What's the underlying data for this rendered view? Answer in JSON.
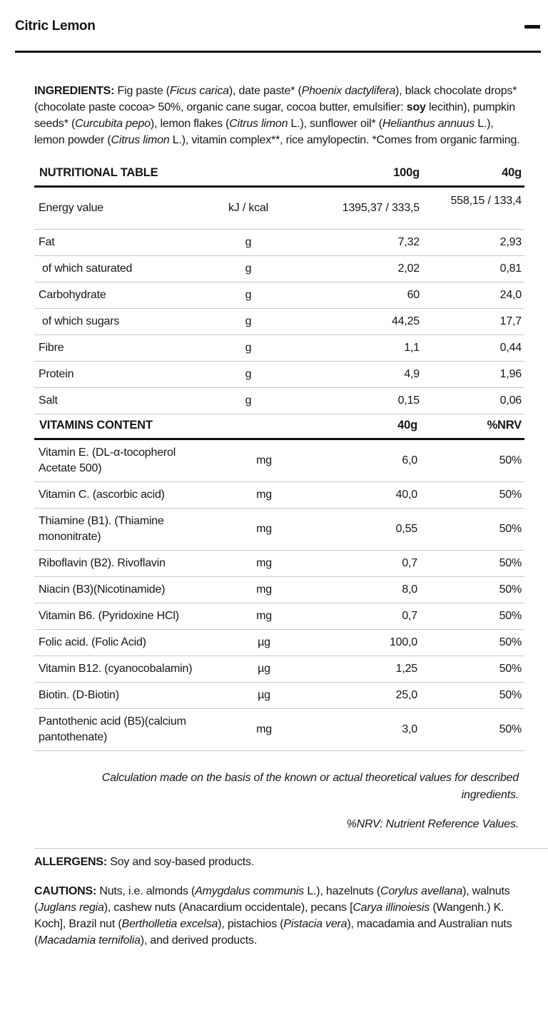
{
  "header": {
    "title": "Citric Lemon"
  },
  "ingredients": {
    "segments": [
      {
        "t": "INGREDIENTS: ",
        "b": true
      },
      {
        "t": "Fig paste ("
      },
      {
        "t": "Ficus carica",
        "i": true
      },
      {
        "t": "), date paste* ("
      },
      {
        "t": "Phoenix dactylifera",
        "i": true
      },
      {
        "t": "), black chocolate drops* (chocolate paste cocoa> 50%, organic cane sugar, cocoa butter, emulsifier: "
      },
      {
        "t": "soy",
        "b": true
      },
      {
        "t": " lecithin), pumpkin seeds* ("
      },
      {
        "t": "Curcubita pepo",
        "i": true
      },
      {
        "t": "), lemon flakes ("
      },
      {
        "t": "Citrus limon",
        "i": true
      },
      {
        "t": " L.), sunflower oil* ("
      },
      {
        "t": "Helianthus annuus",
        "i": true
      },
      {
        "t": " L.), lemon powder ("
      },
      {
        "t": "Citrus limon",
        "i": true
      },
      {
        "t": " L.), vitamin complex**, rice amylopectin. *Comes from organic farming."
      }
    ]
  },
  "nutrition_table": {
    "title": "NUTRITIONAL TABLE",
    "col_100g": "100g",
    "col_40g": "40g",
    "rows": [
      {
        "label": "Energy value",
        "unit": "kJ / kcal",
        "v100": "1395,37 / 333,5",
        "v40": "558,15 / 133,4"
      },
      {
        "label": "Fat",
        "unit": "g",
        "v100": "7,32",
        "v40": "2,93"
      },
      {
        "label": "of which saturated",
        "unit": "g",
        "v100": "2,02",
        "v40": "0,81"
      },
      {
        "label": "Carbohydrate",
        "unit": "g",
        "v100": "60",
        "v40": "24,0"
      },
      {
        "label": "of which sugars",
        "unit": "g",
        "v100": "44,25",
        "v40": "17,7"
      },
      {
        "label": "Fibre",
        "unit": "g",
        "v100": "1,1",
        "v40": "0,44"
      },
      {
        "label": "Protein",
        "unit": "g",
        "v100": "4,9",
        "v40": "1,96"
      },
      {
        "label": "Salt",
        "unit": "g",
        "v100": "0,15",
        "v40": "0,06"
      }
    ]
  },
  "vitamins_table": {
    "title": "VITAMINS CONTENT",
    "col_40g": "40g",
    "col_nrv": "%NRV",
    "rows": [
      {
        "label": "Vitamin E. (DL-α-tocopherol Acetate 500)",
        "unit": "mg",
        "v40": "6,0",
        "nrv": "50%"
      },
      {
        "label": "Vitamin C. (ascorbic acid)",
        "unit": "mg",
        "v40": "40,0",
        "nrv": "50%"
      },
      {
        "label": "Thiamine (B1). (Thiamine mononitrate)",
        "unit": "mg",
        "v40": "0,55",
        "nrv": "50%"
      },
      {
        "label": "Riboflavin (B2). Rivoflavin",
        "unit": "mg",
        "v40": "0,7",
        "nrv": "50%"
      },
      {
        "label": "Niacin (B3)(Nicotinamide)",
        "unit": "mg",
        "v40": "8,0",
        "nrv": "50%"
      },
      {
        "label": "Vitamin B6. (Pyridoxine HCl)",
        "unit": "mg",
        "v40": "0,7",
        "nrv": "50%"
      },
      {
        "label": "Folic acid. (Folic Acid)",
        "unit": "µg",
        "v40": "100,0",
        "nrv": "50%"
      },
      {
        "label": "Vitamin B12. (cyanocobalamin)",
        "unit": "µg",
        "v40": "1,25",
        "nrv": "50%"
      },
      {
        "label": "Biotin. (D-Biotin)",
        "unit": "µg",
        "v40": "25,0",
        "nrv": "50%"
      },
      {
        "label": "Pantothenic acid (B5)(calcium pantothenate)",
        "unit": "mg",
        "v40": "3,0",
        "nrv": "50%"
      }
    ]
  },
  "notes": {
    "calculation": "Calculation made on the basis of the known or actual theoretical values for described ingredients.",
    "nrv_definition": "%NRV: Nutrient Reference Values."
  },
  "allergens": {
    "segments": [
      {
        "t": "ALLERGENS: ",
        "b": true
      },
      {
        "t": "Soy and soy-based products."
      }
    ]
  },
  "cautions": {
    "segments": [
      {
        "t": "CAUTIONS: ",
        "b": true
      },
      {
        "t": "Nuts, i.e. almonds ("
      },
      {
        "t": "Amygdalus communis",
        "i": true
      },
      {
        "t": " L.), hazelnuts ("
      },
      {
        "t": "Corylus avellana",
        "i": true
      },
      {
        "t": "), walnuts ("
      },
      {
        "t": "Juglans regia",
        "i": true
      },
      {
        "t": "), cashew nuts (Anacardium occidentale), pecans ["
      },
      {
        "t": "Carya illinoiesis",
        "i": true
      },
      {
        "t": " (Wangenh.) K. Koch], Brazil nut ("
      },
      {
        "t": "Bertholletia excelsa",
        "i": true
      },
      {
        "t": "), pistachios ("
      },
      {
        "t": "Pistacia vera",
        "i": true
      },
      {
        "t": "), macadamia and Australian nuts ("
      },
      {
        "t": "Macadamia ternifolia",
        "i": true
      },
      {
        "t": "), and derived products."
      }
    ]
  },
  "colors": {
    "text": "#161616",
    "rule_heavy": "#111111",
    "rule_light": "#c9c9c9"
  }
}
